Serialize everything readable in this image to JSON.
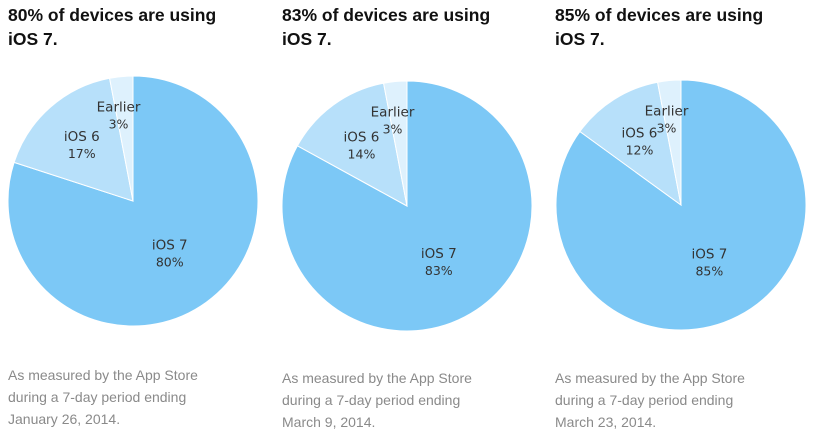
{
  "colors": {
    "ios7": "#7cc8f6",
    "ios6": "#b7e0fa",
    "earlier": "#def1fd",
    "border": "#ffffff"
  },
  "panels": [
    {
      "title_line1": "80% of devices are using",
      "title_line2": "iOS 7.",
      "caption_line1": "As measured by the App Store",
      "caption_line2": "during a 7-day period ending",
      "caption_line3": "January 26, 2014."
    },
    {
      "title_line1": "83% of devices are using",
      "title_line2": "iOS 7.",
      "caption_line1": "As measured by the App Store",
      "caption_line2": "during a 7-day period ending",
      "caption_line3": "March 9, 2014."
    },
    {
      "title_line1": "85% of devices are using",
      "title_line2": "iOS 7.",
      "caption_line1": "As measured by the App Store",
      "caption_line2": "during a 7-day period ending",
      "caption_line3": "March 23, 2014."
    }
  ],
  "chart_data": [
    {
      "type": "pie",
      "title": "80% of devices are using iOS 7.",
      "slices": [
        {
          "name": "iOS 7",
          "value": 80,
          "label": "80%"
        },
        {
          "name": "iOS 6",
          "value": 17,
          "label": "17%"
        },
        {
          "name": "Earlier",
          "value": 3,
          "label": "3%"
        }
      ]
    },
    {
      "type": "pie",
      "title": "83% of devices are using iOS 7.",
      "slices": [
        {
          "name": "iOS 7",
          "value": 83,
          "label": "83%"
        },
        {
          "name": "iOS 6",
          "value": 14,
          "label": "14%"
        },
        {
          "name": "Earlier",
          "value": 3,
          "label": "3%"
        }
      ]
    },
    {
      "type": "pie",
      "title": "85% of devices are using iOS 7.",
      "slices": [
        {
          "name": "iOS 7",
          "value": 85,
          "label": "85%"
        },
        {
          "name": "iOS 6",
          "value": 12,
          "label": "12%"
        },
        {
          "name": "Earlier",
          "value": 3,
          "label": "3%"
        }
      ]
    }
  ]
}
